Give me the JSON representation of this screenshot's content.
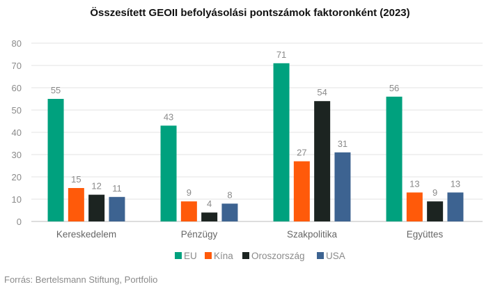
{
  "chart_data": {
    "type": "bar",
    "title": "Összesített GEOII befolyásolási pontszámok faktoronként (2023)",
    "categories": [
      "Kereskedelem",
      "Pénzügy",
      "Szakpolitika",
      "Együttes"
    ],
    "series": [
      {
        "name": "EU",
        "color": "#00a17e",
        "values": [
          55,
          43,
          71,
          56
        ]
      },
      {
        "name": "Kína",
        "color": "#ff5a0a",
        "values": [
          15,
          9,
          27,
          13
        ]
      },
      {
        "name": "Oroszország",
        "color": "#1c2421",
        "values": [
          12,
          4,
          54,
          9
        ]
      },
      {
        "name": "USA",
        "color": "#3d6391",
        "values": [
          11,
          8,
          31,
          13
        ]
      }
    ],
    "ylim": [
      0,
      80
    ],
    "yticks": [
      0,
      10,
      20,
      30,
      40,
      50,
      60,
      70,
      80
    ],
    "grid": true,
    "legend": "bottom",
    "source": "Forrás: Bertelsmann Stiftung, Portfolio"
  }
}
